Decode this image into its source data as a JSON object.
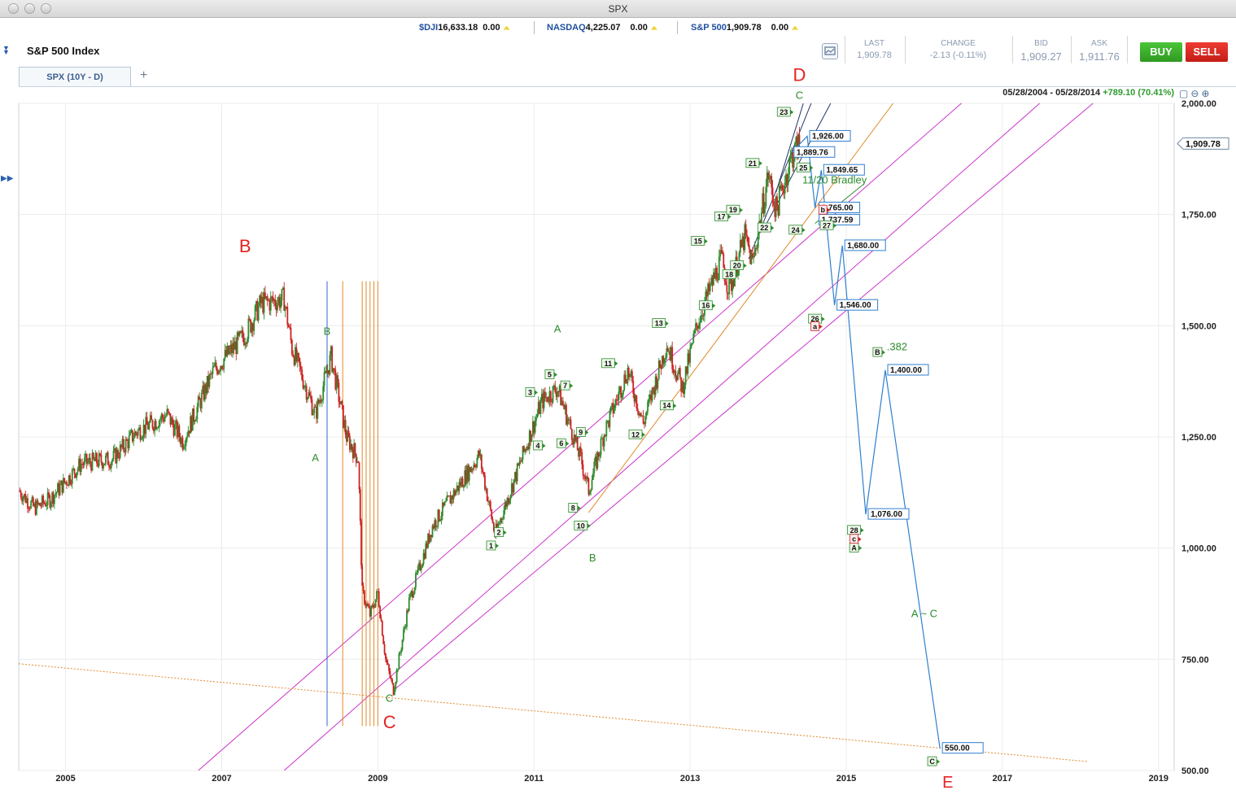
{
  "window": {
    "title": "SPX"
  },
  "tickers": [
    {
      "symbol": "$DJI",
      "value": "16,633.18",
      "change": "0.00"
    },
    {
      "symbol": "NASDAQ",
      "value": "4,225.07",
      "change": "0.00"
    },
    {
      "symbol": "S&P 500",
      "value": "1,909.78",
      "change": "0.00"
    }
  ],
  "header": {
    "index_name": "S&P 500 Index"
  },
  "quote": {
    "last_label": "LAST",
    "last": "1,909.78",
    "change_label": "CHANGE",
    "change": "-2.13 (-0.11%)",
    "bid_label": "BID",
    "bid": "1,909.27",
    "ask_label": "ASK",
    "ask": "1,911.76"
  },
  "buttons": {
    "buy": "BUY",
    "sell": "SELL"
  },
  "tabs": [
    {
      "label": "SPX (10Y - D)"
    }
  ],
  "tab_add_label": "+",
  "range": {
    "dates": "05/28/2004 - 05/28/2014",
    "gain": "+789.10 (70.41%)"
  },
  "colors": {
    "buy": "#35a928",
    "sell": "#d9261e",
    "up_candle": "#2e8b2e",
    "down_candle": "#cc2222",
    "projection": "#2f7fd0",
    "channel": "#cc33cc",
    "trend_orange": "#e08a2a"
  },
  "icons": [
    "collapse-icon",
    "expand-icon",
    "chart-settings-icon",
    "zoom-reset-icon",
    "zoom-out-icon",
    "zoom-in-icon"
  ],
  "chart_data": {
    "type": "candlestick",
    "x_ticks": [
      "2005",
      "2007",
      "2009",
      "2011",
      "2013",
      "2015",
      "2017",
      "2019"
    ],
    "y_ticks": [
      "500.00",
      "750.00",
      "1,000.00",
      "1,250.00",
      "1,500.00",
      "1,750.00",
      "2,000.00"
    ],
    "ylim": [
      500,
      2000
    ],
    "xlim": [
      2004.4,
      2019.2
    ],
    "last_price_label": "1,909.78",
    "price_path": [
      [
        2004.4,
        1130
      ],
      [
        2004.6,
        1090
      ],
      [
        2004.8,
        1110
      ],
      [
        2005.2,
        1190
      ],
      [
        2005.6,
        1200
      ],
      [
        2005.9,
        1260
      ],
      [
        2006.3,
        1300
      ],
      [
        2006.5,
        1240
      ],
      [
        2006.9,
        1400
      ],
      [
        2007.3,
        1480
      ],
      [
        2007.5,
        1550
      ],
      [
        2007.8,
        1560
      ],
      [
        2007.9,
        1450
      ],
      [
        2008.2,
        1300
      ],
      [
        2008.4,
        1430
      ],
      [
        2008.6,
        1250
      ],
      [
        2008.75,
        1200
      ],
      [
        2008.8,
        900
      ],
      [
        2008.9,
        850
      ],
      [
        2009.0,
        900
      ],
      [
        2009.1,
        750
      ],
      [
        2009.2,
        680
      ],
      [
        2009.4,
        880
      ],
      [
        2009.7,
        1050
      ],
      [
        2010.0,
        1130
      ],
      [
        2010.3,
        1210
      ],
      [
        2010.5,
        1030
      ],
      [
        2010.8,
        1180
      ],
      [
        2011.1,
        1330
      ],
      [
        2011.3,
        1360
      ],
      [
        2011.6,
        1200
      ],
      [
        2011.7,
        1130
      ],
      [
        2011.9,
        1260
      ],
      [
        2012.2,
        1400
      ],
      [
        2012.4,
        1280
      ],
      [
        2012.7,
        1460
      ],
      [
        2012.9,
        1360
      ],
      [
        2013.1,
        1510
      ],
      [
        2013.4,
        1650
      ],
      [
        2013.5,
        1580
      ],
      [
        2013.7,
        1700
      ],
      [
        2013.8,
        1640
      ],
      [
        2014.0,
        1840
      ],
      [
        2014.1,
        1760
      ],
      [
        2014.3,
        1880
      ],
      [
        2014.4,
        1909
      ]
    ],
    "projection_path": [
      [
        2014.3,
        1889.76
      ],
      [
        2014.5,
        1926
      ],
      [
        2014.6,
        1765
      ],
      [
        2014.68,
        1849.65
      ],
      [
        2014.85,
        1546
      ],
      [
        2014.95,
        1680
      ],
      [
        2015.25,
        1076
      ],
      [
        2015.5,
        1400
      ],
      [
        2016.2,
        550
      ]
    ],
    "projection_labels": [
      {
        "x": 2014.5,
        "y": 1926,
        "text": "1,926.00"
      },
      {
        "x": 2014.3,
        "y": 1889.76,
        "text": "1,889.76"
      },
      {
        "x": 2014.68,
        "y": 1849.65,
        "text": "1,849.65"
      },
      {
        "x": 2014.62,
        "y": 1765,
        "text": "1,765.00"
      },
      {
        "x": 2014.62,
        "y": 1737.59,
        "text": "1,737.59"
      },
      {
        "x": 2014.95,
        "y": 1680,
        "text": "1,680.00"
      },
      {
        "x": 2014.85,
        "y": 1546,
        "text": "1,546.00"
      },
      {
        "x": 2015.5,
        "y": 1400,
        "text": "1,400.00"
      },
      {
        "x": 2015.25,
        "y": 1076,
        "text": "1,076.00"
      },
      {
        "x": 2016.2,
        "y": 550,
        "text": "550.00"
      }
    ],
    "wave_counts": [
      {
        "text": "1",
        "x": 2010.45,
        "y": 1005
      },
      {
        "text": "2",
        "x": 2010.55,
        "y": 1035
      },
      {
        "text": "3",
        "x": 2010.95,
        "y": 1350
      },
      {
        "text": "4",
        "x": 2011.05,
        "y": 1230
      },
      {
        "text": "5",
        "x": 2011.2,
        "y": 1390
      },
      {
        "text": "6",
        "x": 2011.35,
        "y": 1235
      },
      {
        "text": "7",
        "x": 2011.4,
        "y": 1365
      },
      {
        "text": "8",
        "x": 2011.5,
        "y": 1090
      },
      {
        "text": "9",
        "x": 2011.6,
        "y": 1260
      },
      {
        "text": "10",
        "x": 2011.6,
        "y": 1050
      },
      {
        "text": "11",
        "x": 2011.95,
        "y": 1415
      },
      {
        "text": "12",
        "x": 2012.3,
        "y": 1255
      },
      {
        "text": "13",
        "x": 2012.6,
        "y": 1505
      },
      {
        "text": "14",
        "x": 2012.7,
        "y": 1320
      },
      {
        "text": "15",
        "x": 2013.1,
        "y": 1690
      },
      {
        "text": "16",
        "x": 2013.2,
        "y": 1545
      },
      {
        "text": "17",
        "x": 2013.4,
        "y": 1745
      },
      {
        "text": "18",
        "x": 2013.5,
        "y": 1615
      },
      {
        "text": "19",
        "x": 2013.55,
        "y": 1760
      },
      {
        "text": "20",
        "x": 2013.6,
        "y": 1635
      },
      {
        "text": "21",
        "x": 2013.8,
        "y": 1865
      },
      {
        "text": "22",
        "x": 2013.95,
        "y": 1720
      },
      {
        "text": "23",
        "x": 2014.2,
        "y": 1980
      },
      {
        "text": "24",
        "x": 2014.35,
        "y": 1715
      },
      {
        "text": "25",
        "x": 2014.45,
        "y": 1855
      },
      {
        "text": "26",
        "x": 2014.6,
        "y": 1515
      },
      {
        "text": "27",
        "x": 2014.75,
        "y": 1725
      },
      {
        "text": "28",
        "x": 2015.1,
        "y": 1040
      },
      {
        "text": "B",
        "x": 2015.4,
        "y": 1440
      },
      {
        "text": "A",
        "x": 2015.1,
        "y": 1000
      },
      {
        "text": "C",
        "x": 2016.1,
        "y": 520
      }
    ],
    "small_labels": [
      {
        "text": "a",
        "x": 2014.6,
        "y": 1498,
        "color": "#cc2222"
      },
      {
        "text": "b",
        "x": 2014.7,
        "y": 1760,
        "color": "#cc2222"
      },
      {
        "text": "c",
        "x": 2015.1,
        "y": 1020,
        "color": "#cc2222"
      }
    ],
    "annotations": [
      {
        "text": "B",
        "x": 2007.3,
        "y": 1665,
        "color": "#e52222",
        "size": 22
      },
      {
        "text": "C",
        "x": 2009.15,
        "y": 595,
        "color": "#e52222",
        "size": 22
      },
      {
        "text": "D",
        "x": 2014.4,
        "y": 2050,
        "color": "#e52222",
        "size": 22
      },
      {
        "text": "E",
        "x": 2016.3,
        "y": 462,
        "color": "#e52222",
        "size": 20
      },
      {
        "text": "A",
        "x": 2008.2,
        "y": 1195,
        "color": "#2e8b2e",
        "size": 13
      },
      {
        "text": "B",
        "x": 2008.35,
        "y": 1480,
        "color": "#2e8b2e",
        "size": 13
      },
      {
        "text": "C",
        "x": 2009.15,
        "y": 655,
        "color": "#2e8b2e",
        "size": 13
      },
      {
        "text": "A",
        "x": 2011.3,
        "y": 1485,
        "color": "#2e8b2e",
        "size": 13
      },
      {
        "text": "B",
        "x": 2011.75,
        "y": 970,
        "color": "#2e8b2e",
        "size": 13
      },
      {
        "text": "C",
        "x": 2014.4,
        "y": 2010,
        "color": "#2e8b2e",
        "size": 13
      },
      {
        "text": "11/20 Bradley",
        "x": 2014.85,
        "y": 1820,
        "color": "#2e8b2e",
        "size": 13
      },
      {
        "text": ".382",
        "x": 2015.65,
        "y": 1445,
        "color": "#2e8b2e",
        "size": 13
      },
      {
        "text": "A ~ C",
        "x": 2016.0,
        "y": 845,
        "color": "#2e8b2e",
        "size": 13
      }
    ]
  }
}
